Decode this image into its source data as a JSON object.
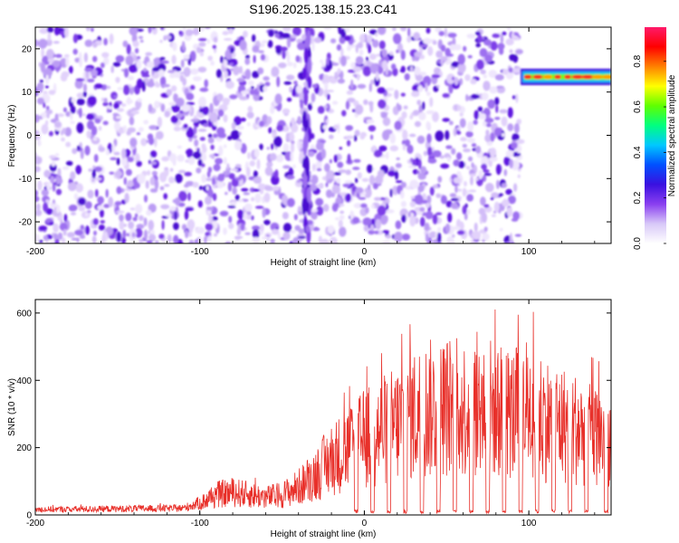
{
  "title": "S196.2025.138.15.23.C41",
  "chart_data": [
    {
      "type": "heatmap",
      "xlabel": "Height of straight line (km)",
      "ylabel": "Frequency (Hz)",
      "xlim": [
        -200,
        150
      ],
      "ylim": [
        -25,
        25
      ],
      "xticks": [
        -200,
        -100,
        0,
        100
      ],
      "yticks": [
        -20,
        -10,
        0,
        10,
        20
      ],
      "colorbar": {
        "label": "Normalized spectral amplitude",
        "range": [
          0,
          0.95
        ],
        "ticks": [
          "0.0",
          "0.2",
          "0.4",
          "0.6",
          "0.8"
        ],
        "colors": [
          "#ffffff",
          "#d8c8f8",
          "#8a3ff0",
          "#3a10e0",
          "#0050ff",
          "#00c8ff",
          "#00ff80",
          "#60ff00",
          "#ffff00",
          "#ff8000",
          "#ff0000",
          "#ff1a6a"
        ]
      },
      "features": {
        "noise_region_x": [
          -200,
          95
        ],
        "quiet_region_x": [
          95,
          150
        ],
        "signal_line": {
          "x": [
            95,
            150
          ],
          "frequency_hz": 13.5,
          "peak_amplitude": 0.85
        },
        "vertical_streak_x": -35
      }
    },
    {
      "type": "line",
      "xlabel": "Height of straight line (km)",
      "ylabel": "SNR (10 * v/v)",
      "xlim": [
        -200,
        150
      ],
      "ylim": [
        0,
        640
      ],
      "xticks": [
        -200,
        -100,
        0,
        100
      ],
      "yticks": [
        0,
        200,
        400,
        600
      ],
      "series": [
        {
          "color": "#e8302a",
          "envelope_x": [
            -200,
            -110,
            -100,
            -90,
            -80,
            -70,
            -60,
            -50,
            -40,
            -30,
            -20,
            -10,
            0,
            10,
            20,
            30,
            40,
            50,
            60,
            70,
            80,
            90,
            100,
            110,
            120,
            130,
            140,
            150
          ],
          "envelope_y": [
            20,
            25,
            45,
            80,
            90,
            80,
            70,
            80,
            110,
            160,
            220,
            260,
            300,
            330,
            360,
            400,
            420,
            430,
            420,
            440,
            420,
            400,
            430,
            380,
            360,
            340,
            320,
            300
          ],
          "dips_x": [
            -5,
            5,
            15,
            25,
            35,
            45,
            55,
            65,
            75,
            85,
            95,
            105,
            115,
            125,
            135,
            147
          ]
        }
      ]
    }
  ]
}
